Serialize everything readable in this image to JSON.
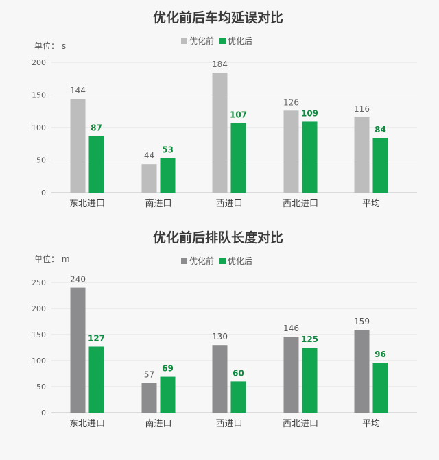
{
  "chart_data": [
    {
      "type": "bar",
      "title": "优化前后车均延误对比",
      "unit_label": "单位： s",
      "categories": [
        "东北进口",
        "南进口",
        "西进口",
        "西北进口",
        "平均"
      ],
      "series": [
        {
          "name": "优化前",
          "values": [
            144,
            44,
            184,
            126,
            116
          ],
          "color": "#bdbdbd",
          "label_color": "#666666"
        },
        {
          "name": "优化后",
          "values": [
            87,
            53,
            107,
            109,
            84
          ],
          "color": "#12a650",
          "label_color": "#0e8a3e"
        }
      ],
      "yticks": [
        0,
        50,
        100,
        150,
        200
      ],
      "ylim": [
        0,
        200
      ],
      "legend": "top-center",
      "grid": true
    },
    {
      "type": "bar",
      "title": "优化前后排队长度对比",
      "unit_label": "单位： m",
      "categories": [
        "东北进口",
        "南进口",
        "西进口",
        "西北进口",
        "平均"
      ],
      "series": [
        {
          "name": "优化前",
          "values": [
            240,
            57,
            130,
            146,
            159
          ],
          "color": "#8c8c8f",
          "label_color": "#555555"
        },
        {
          "name": "优化后",
          "values": [
            127,
            69,
            60,
            125,
            96
          ],
          "color": "#12a650",
          "label_color": "#0e8a3e"
        }
      ],
      "yticks": [
        0,
        50,
        100,
        150,
        200,
        250
      ],
      "ylim": [
        0,
        250
      ],
      "legend": "top-center",
      "grid": true
    }
  ]
}
